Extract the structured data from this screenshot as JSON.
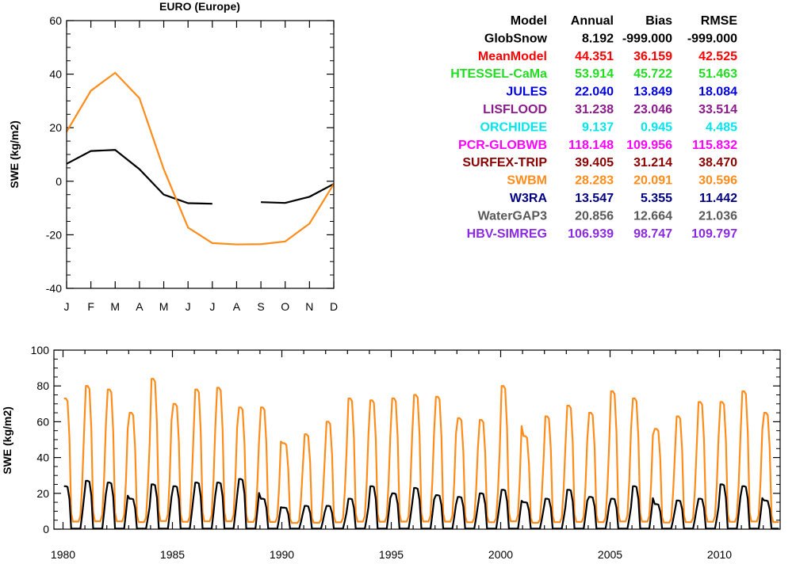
{
  "chart_data": [
    {
      "type": "line",
      "title": "EURO (Europe)",
      "ylabel": "SWE (kg/m2)",
      "ylim": [
        -40,
        60
      ],
      "yticks": [
        -40,
        -20,
        0,
        20,
        40,
        60
      ],
      "categories": [
        "J",
        "F",
        "M",
        "A",
        "M",
        "J",
        "J",
        "A",
        "S",
        "O",
        "N",
        "D"
      ],
      "series": [
        {
          "color": "#000000",
          "values": [
            6.5,
            11.3,
            11.7,
            4.5,
            -5.0,
            -8.2,
            -8.4,
            null,
            -7.8,
            -8.1,
            -5.8,
            -1.0
          ]
        },
        {
          "color": "#ff8c1a",
          "values": [
            18.5,
            33.8,
            40.5,
            31.0,
            4.5,
            -17.3,
            -23.1,
            -23.6,
            -23.5,
            -22.5,
            -15.8,
            -1.0
          ]
        }
      ],
      "grid": false
    },
    {
      "type": "line",
      "title": "",
      "ylabel": "SWE (kg/m2)",
      "ylim": [
        0,
        100
      ],
      "yticks": [
        0,
        20,
        40,
        60,
        80,
        100
      ],
      "xlim": [
        1980,
        2013
      ],
      "xticks": [
        1980,
        1985,
        1990,
        1995,
        2000,
        2005,
        2010
      ],
      "series": [
        {
          "color": "#ff8c1a",
          "annual_peaks": [
            73,
            80,
            78,
            65,
            84,
            70,
            78,
            79,
            68,
            68,
            48,
            53,
            60,
            73,
            72,
            73,
            75,
            74,
            62,
            61,
            80,
            52,
            63,
            69,
            65,
            77,
            73,
            56,
            63,
            71,
            71,
            77,
            65
          ]
        },
        {
          "color": "#000000",
          "annual_peaks": [
            24,
            27,
            26,
            17,
            25,
            24,
            26,
            26,
            28,
            17,
            12,
            13,
            13,
            17,
            24,
            20,
            23,
            19,
            18,
            20,
            22,
            15,
            17,
            22,
            18,
            17,
            24,
            14,
            16,
            17,
            25,
            24,
            16
          ]
        }
      ],
      "grid": false
    }
  ],
  "stats_table": {
    "headers": [
      "Model",
      "Annual",
      "Bias",
      "RMSE"
    ],
    "rows": [
      {
        "model": "GlobSnow",
        "annual": "8.192",
        "bias": "-999.000",
        "rmse": "-999.000",
        "color": "#000000"
      },
      {
        "model": "MeanModel",
        "annual": "44.351",
        "bias": "36.159",
        "rmse": "42.525",
        "color": "#ff0000"
      },
      {
        "model": "HTESSEL-CaMa",
        "annual": "53.914",
        "bias": "45.722",
        "rmse": "51.463",
        "color": "#22dd22"
      },
      {
        "model": "JULES",
        "annual": "22.040",
        "bias": "13.849",
        "rmse": "18.084",
        "color": "#0000dd"
      },
      {
        "model": "LISFLOOD",
        "annual": "31.238",
        "bias": "23.046",
        "rmse": "33.514",
        "color": "#8b1a8b"
      },
      {
        "model": "ORCHIDEE",
        "annual": "9.137",
        "bias": "0.945",
        "rmse": "4.485",
        "color": "#00e5ee"
      },
      {
        "model": "PCR-GLOBWB",
        "annual": "118.148",
        "bias": "109.956",
        "rmse": "115.832",
        "color": "#ff00ff"
      },
      {
        "model": "SURFEX-TRIP",
        "annual": "39.405",
        "bias": "31.214",
        "rmse": "38.470",
        "color": "#8b0000"
      },
      {
        "model": "SWBM",
        "annual": "28.283",
        "bias": "20.091",
        "rmse": "30.596",
        "color": "#ff8c1a"
      },
      {
        "model": "W3RA",
        "annual": "13.547",
        "bias": "5.355",
        "rmse": "11.442",
        "color": "#000080"
      },
      {
        "model": "WaterGAP3",
        "annual": "20.856",
        "bias": "12.664",
        "rmse": "21.036",
        "color": "#595959"
      },
      {
        "model": "HBV-SIMREG",
        "annual": "106.939",
        "bias": "98.747",
        "rmse": "109.797",
        "color": "#8a2be2"
      }
    ]
  }
}
